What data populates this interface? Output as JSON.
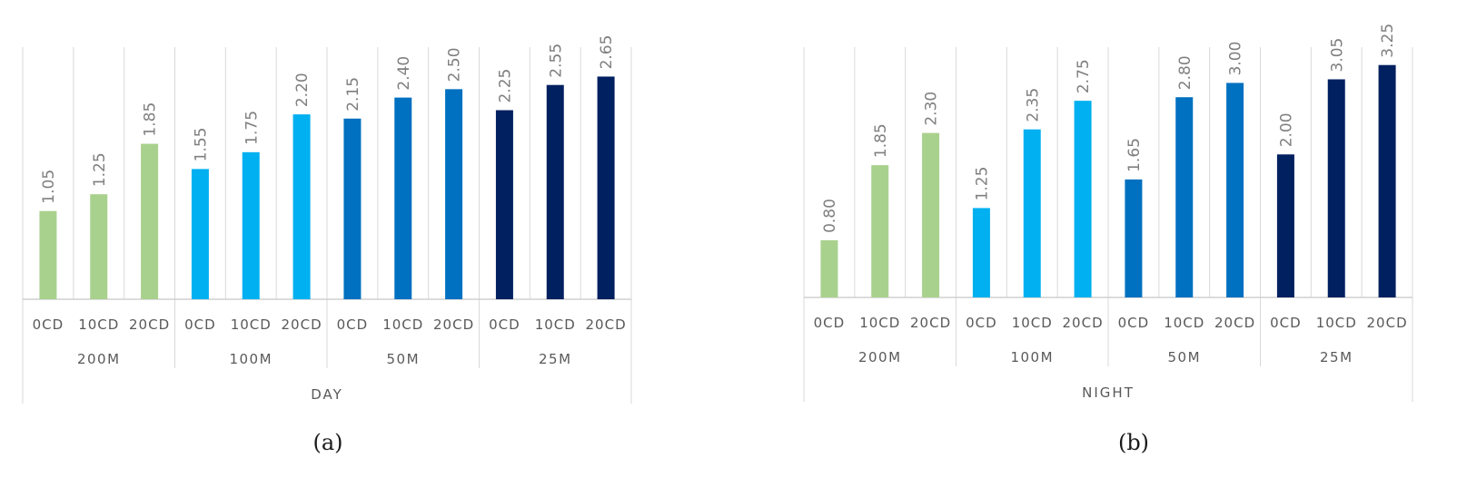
{
  "colors": {
    "200M": "#a9d18e",
    "100M": "#00b0f0",
    "50M": "#0070c0",
    "25M": "#002060",
    "grid": "#d9d9d9",
    "label": "#595959",
    "value": "#7f7f7f"
  },
  "chart_data": [
    {
      "type": "bar",
      "caption": "(a)",
      "period": "DAY",
      "groups": [
        "200M",
        "100M",
        "50M",
        "25M"
      ],
      "categories": [
        "0CD",
        "10CD",
        "20CD"
      ],
      "values": [
        [
          1.05,
          1.25,
          1.85
        ],
        [
          1.55,
          1.75,
          2.2
        ],
        [
          2.15,
          2.4,
          2.5
        ],
        [
          2.25,
          2.55,
          2.65
        ]
      ],
      "value_labels": [
        [
          "1.05",
          "1.25",
          "1.85"
        ],
        [
          "1.55",
          "1.75",
          "2.20"
        ],
        [
          "2.15",
          "2.40",
          "2.50"
        ],
        [
          "2.25",
          "2.55",
          "2.65"
        ]
      ],
      "ylim": [
        0,
        3.0
      ],
      "grid": "vertical"
    },
    {
      "type": "bar",
      "caption": "(b)",
      "period": "NIGHT",
      "groups": [
        "200M",
        "100M",
        "50M",
        "25M"
      ],
      "categories": [
        "0CD",
        "10CD",
        "20CD"
      ],
      "values": [
        [
          0.8,
          1.85,
          2.3
        ],
        [
          1.25,
          2.35,
          2.75
        ],
        [
          1.65,
          2.8,
          3.0
        ],
        [
          2.0,
          3.05,
          3.25
        ]
      ],
      "value_labels": [
        [
          "0.80",
          "1.85",
          "2.30"
        ],
        [
          "1.25",
          "2.35",
          "2.75"
        ],
        [
          "1.65",
          "2.80",
          "3.00"
        ],
        [
          "2.00",
          "3.05",
          "3.25"
        ]
      ],
      "ylim": [
        0,
        3.5
      ],
      "grid": "vertical"
    }
  ]
}
